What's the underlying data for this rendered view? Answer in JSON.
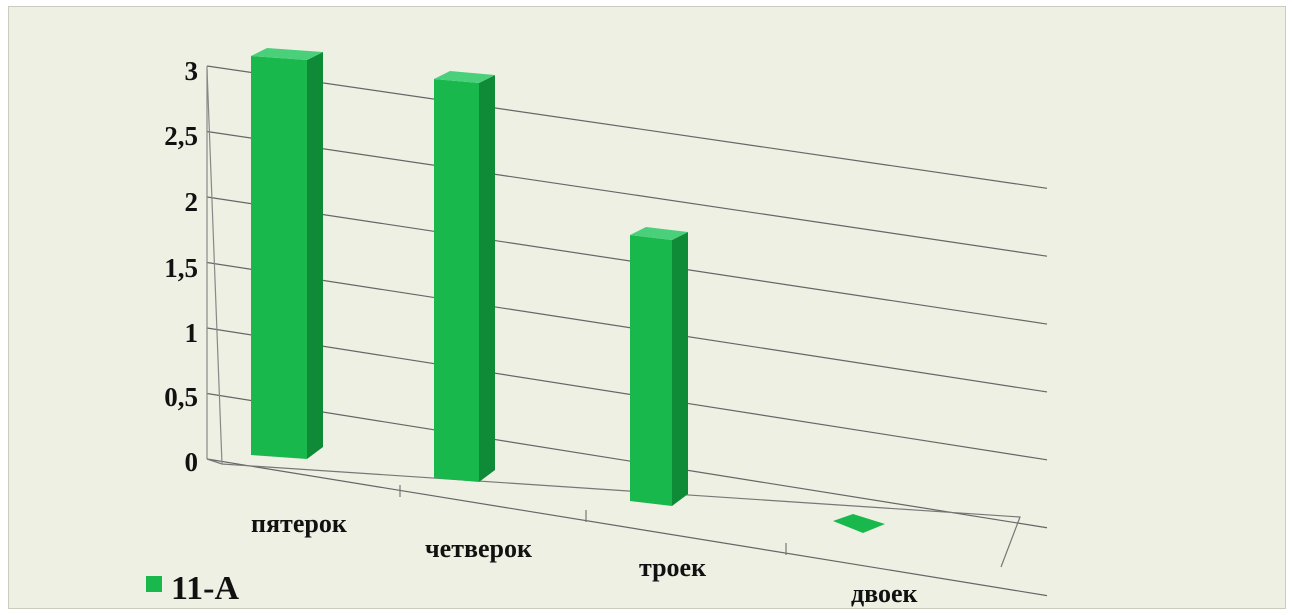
{
  "chart_data": {
    "type": "bar",
    "categories": [
      "пятерок",
      "четверок",
      "троек",
      "двоек"
    ],
    "series": [
      {
        "name": "11-А",
        "values": [
          3,
          3,
          2,
          0
        ]
      }
    ],
    "ylim": [
      0,
      3
    ],
    "yticks": [
      "0",
      "0,5",
      "1",
      "1,5",
      "2",
      "2,5",
      "3"
    ],
    "legend_position": "bottom-left",
    "grid": true,
    "style": "3d-perspective",
    "colors": {
      "bar_front": "#19b84d",
      "bar_side": "#0f8a37",
      "bar_top": "#4ad07a",
      "gridline": "#666666",
      "background": "#eef0e4"
    }
  }
}
